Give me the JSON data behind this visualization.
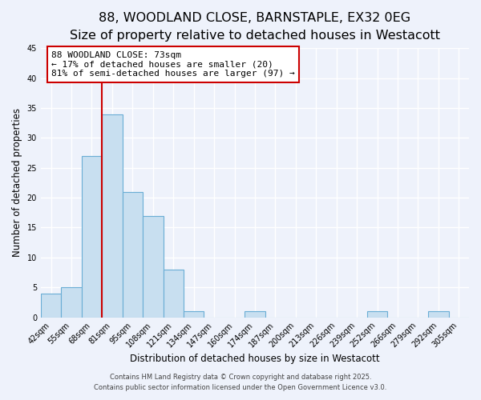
{
  "title": "88, WOODLAND CLOSE, BARNSTAPLE, EX32 0EG",
  "subtitle": "Size of property relative to detached houses in Westacott",
  "xlabel": "Distribution of detached houses by size in Westacott",
  "ylabel": "Number of detached properties",
  "bin_labels": [
    "42sqm",
    "55sqm",
    "68sqm",
    "81sqm",
    "95sqm",
    "108sqm",
    "121sqm",
    "134sqm",
    "147sqm",
    "160sqm",
    "174sqm",
    "187sqm",
    "200sqm",
    "213sqm",
    "226sqm",
    "239sqm",
    "252sqm",
    "266sqm",
    "279sqm",
    "292sqm",
    "305sqm"
  ],
  "bar_values": [
    4,
    5,
    27,
    34,
    21,
    17,
    8,
    1,
    0,
    0,
    1,
    0,
    0,
    0,
    0,
    0,
    1,
    0,
    0,
    1,
    0
  ],
  "bar_color": "#c8dff0",
  "bar_edge_color": "#6aadd5",
  "bar_width": 1.0,
  "ylim": [
    0,
    45
  ],
  "yticks": [
    0,
    5,
    10,
    15,
    20,
    25,
    30,
    35,
    40,
    45
  ],
  "annotation_line1": "88 WOODLAND CLOSE: 73sqm",
  "annotation_line2": "← 17% of detached houses are smaller (20)",
  "annotation_line3": "81% of semi-detached houses are larger (97) →",
  "footer_line1": "Contains HM Land Registry data © Crown copyright and database right 2025.",
  "footer_line2": "Contains public sector information licensed under the Open Government Licence v3.0.",
  "background_color": "#eef2fb",
  "grid_color": "#ffffff",
  "title_fontsize": 11.5,
  "subtitle_fontsize": 9,
  "label_fontsize": 8.5,
  "tick_fontsize": 7,
  "annotation_fontsize": 8,
  "footer_fontsize": 6
}
